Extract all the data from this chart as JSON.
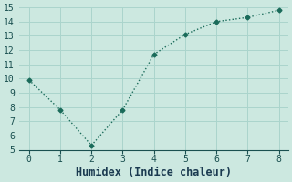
{
  "x": [
    0,
    1,
    2,
    3,
    4,
    5,
    6,
    7,
    8
  ],
  "y": [
    9.9,
    7.8,
    5.3,
    7.8,
    11.7,
    13.1,
    14.0,
    14.3,
    14.8
  ],
  "line_color": "#1a6b5a",
  "marker": "D",
  "marker_size": 2.5,
  "line_width": 1.0,
  "xlabel": "Humidex (Indice chaleur)",
  "xlim": [
    -0.3,
    8.3
  ],
  "ylim": [
    5,
    15
  ],
  "xticks": [
    0,
    1,
    2,
    3,
    4,
    5,
    6,
    7,
    8
  ],
  "yticks": [
    5,
    6,
    7,
    8,
    9,
    10,
    11,
    12,
    13,
    14,
    15
  ],
  "background_color": "#cce8e0",
  "grid_color": "#aad4cc",
  "tick_fontsize": 7,
  "xlabel_fontsize": 8.5,
  "tick_color": "#1a5050",
  "xlabel_color": "#1a3a50",
  "spine_color": "#1a5050",
  "font_family": "monospace"
}
